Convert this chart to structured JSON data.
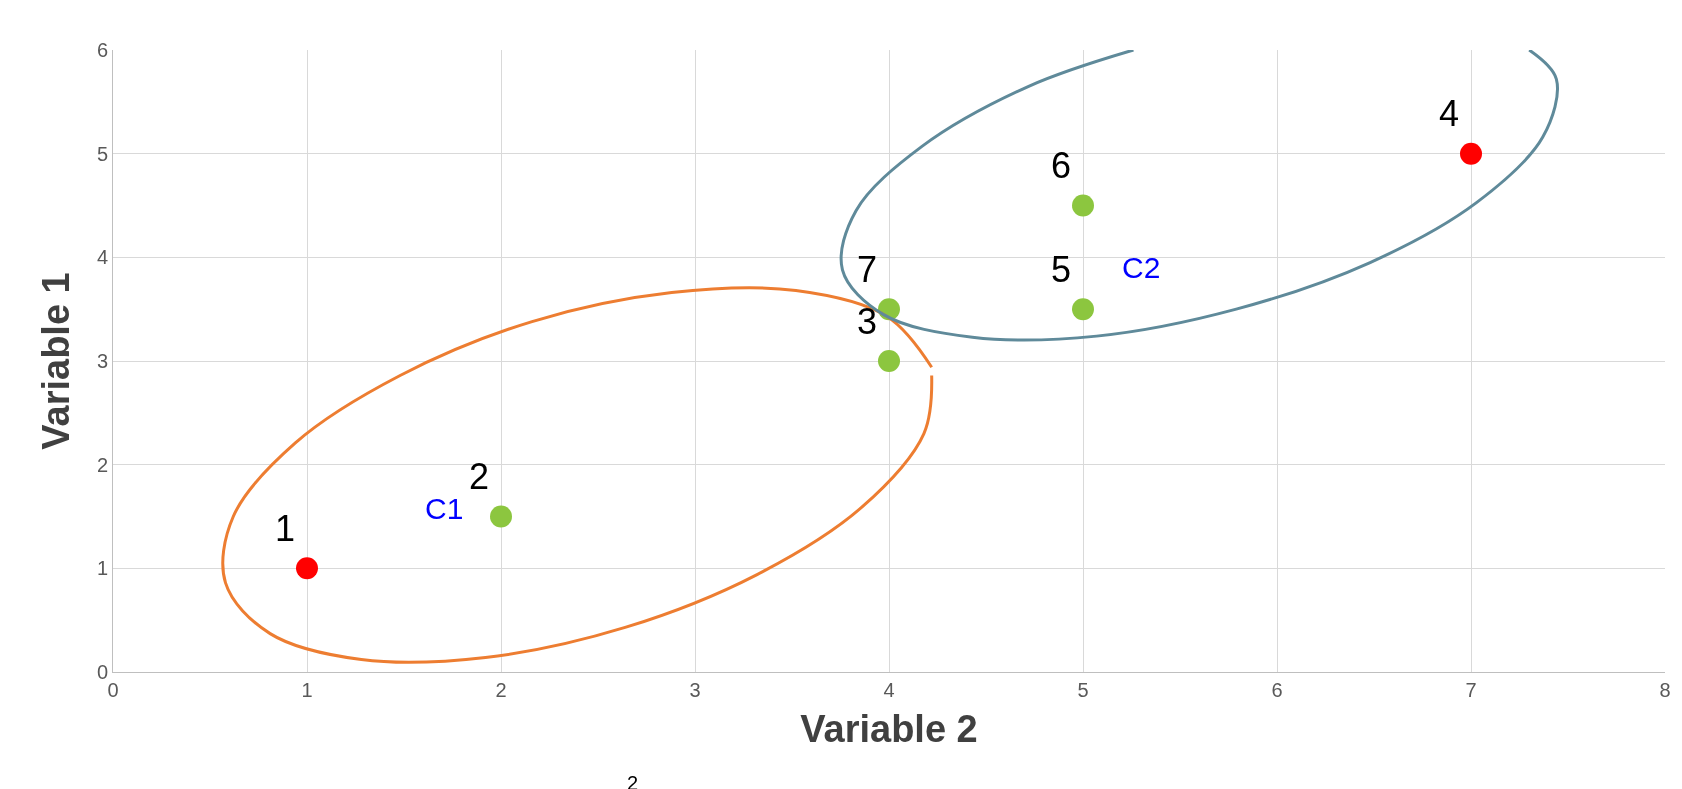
{
  "chart_data": {
    "type": "scatter",
    "xlabel": "Variable 2",
    "ylabel": "Variable 1",
    "series": [
      {
        "x": [
          1,
          2,
          4,
          7,
          5,
          5,
          4
        ],
        "values": [
          1,
          1.5,
          3,
          5,
          3.5,
          4.5,
          3.5
        ],
        "colors": [
          "#ff0000",
          "#8cc63f",
          "#8cc63f",
          "#ff0000",
          "#8cc63f",
          "#8cc63f",
          "#8cc63f"
        ]
      },
      {
        "type": "line",
        "marker": "none",
        "color": "#ed7d31",
        "x": [
          4.22,
          3.99,
          3.52,
          2.88,
          2.16,
          1.48,
          0.94,
          0.62,
          0.58,
          0.81,
          1.28,
          1.92,
          2.64,
          3.32,
          3.86,
          4.18,
          4.22
        ],
        "values": [
          2.94,
          3.43,
          3.68,
          3.66,
          3.38,
          2.86,
          2.21,
          1.5,
          0.86,
          0.37,
          0.12,
          0.14,
          0.43,
          0.94,
          1.59,
          2.3,
          2.86
        ]
      },
      {
        "type": "line",
        "marker": "none",
        "color": "#5f8a9a",
        "x": [
          5.26,
          4.72,
          4.17,
          3.83,
          3.76,
          3.97,
          4.43,
          5.07,
          5.79,
          6.48,
          7.03,
          7.37,
          7.44,
          7.3
        ],
        "values": [
          6,
          5.65,
          5.07,
          4.45,
          3.88,
          3.45,
          3.23,
          3.24,
          3.5,
          3.95,
          4.53,
          5.16,
          5.72,
          6
        ]
      }
    ],
    "xlim": [
      0,
      8
    ],
    "ylim": [
      0,
      6
    ],
    "xticks": [
      0,
      1,
      2,
      3,
      4,
      5,
      6,
      7,
      8
    ],
    "yticks": [
      0,
      1,
      2,
      3,
      4,
      5,
      6
    ],
    "grid": true,
    "marker": "circle",
    "annotations": [
      {
        "text": "1",
        "x": 1,
        "y": 1
      },
      {
        "text": "2",
        "x": 2,
        "y": 1.5
      },
      {
        "text": "3",
        "x": 4,
        "y": 3
      },
      {
        "text": "4",
        "x": 7,
        "y": 5
      },
      {
        "text": "5",
        "x": 5,
        "y": 3.5
      },
      {
        "text": "6",
        "x": 5,
        "y": 4.5
      },
      {
        "text": "7",
        "x": 4,
        "y": 3.5
      },
      "C1",
      "C2",
      "2"
    ]
  }
}
